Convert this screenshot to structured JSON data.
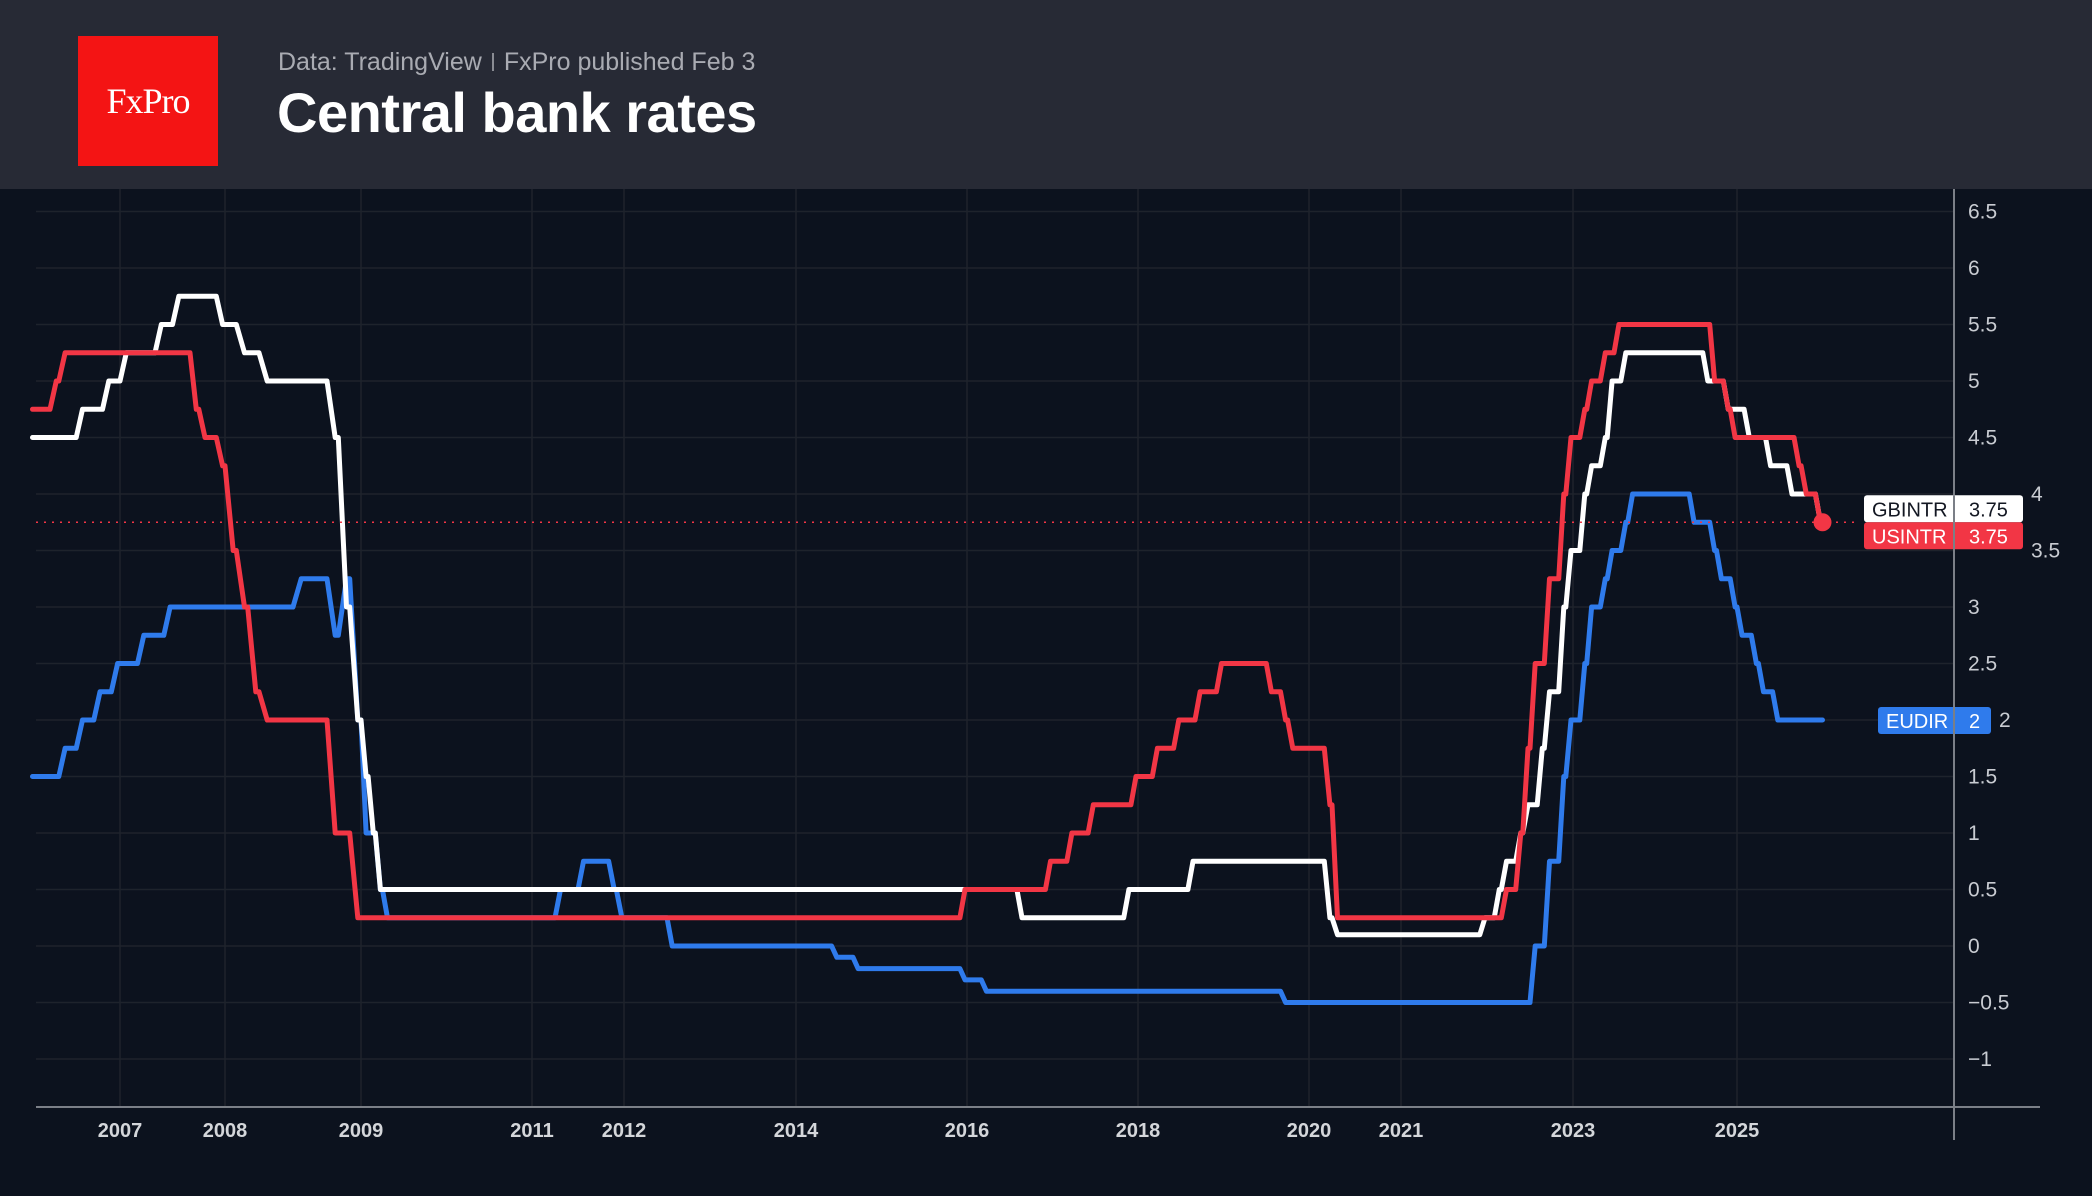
{
  "header": {
    "logo_text": "FxPro",
    "source": "Data: TradingView",
    "published": "FxPro published Feb 3",
    "title": "Central bank rates"
  },
  "chart_data": {
    "type": "line",
    "title": "Central bank rates",
    "xlabel": "",
    "ylabel": "",
    "x_ticks": [
      "2007",
      "2008",
      "2009",
      "2011",
      "2012",
      "2014",
      "2016",
      "2018",
      "2020",
      "2021",
      "2023",
      "2025"
    ],
    "y_ticks": [
      "6.5",
      "6",
      "5.5",
      "5",
      "4.5",
      "4",
      "3.5",
      "3",
      "2.5",
      "2",
      "1.5",
      "1",
      "0.5",
      "0",
      "−0.5",
      "−1"
    ],
    "y_tick_values": [
      6.5,
      6,
      5.5,
      5,
      4.5,
      4,
      3.5,
      3,
      2.5,
      2,
      1.5,
      1,
      0.5,
      0,
      -0.5,
      -1
    ],
    "ylim": [
      -1.4,
      6.7
    ],
    "grid": true,
    "background": "#0c121e",
    "series": [
      {
        "name": "GBINTR",
        "last_value": "3.75",
        "color": "#ffffff",
        "label_text_color": "#131722",
        "end": "2026-01",
        "steps": [
          [
            "2006-03",
            4.5
          ],
          [
            "2006-08",
            4.75
          ],
          [
            "2006-11",
            5.0
          ],
          [
            "2007-01",
            5.25
          ],
          [
            "2007-05",
            5.5
          ],
          [
            "2007-07",
            5.75
          ],
          [
            "2007-12",
            5.5
          ],
          [
            "2008-02",
            5.25
          ],
          [
            "2008-04",
            5.0
          ],
          [
            "2008-10",
            4.5
          ],
          [
            "2008-11",
            3.0
          ],
          [
            "2008-12",
            2.0
          ],
          [
            "2009-01",
            1.5
          ],
          [
            "2009-02",
            1.0
          ],
          [
            "2009-03",
            0.5
          ],
          [
            "2016-08",
            0.25
          ],
          [
            "2017-11",
            0.5
          ],
          [
            "2018-08",
            0.75
          ],
          [
            "2020-03",
            0.25
          ],
          [
            "2020-04",
            0.1
          ],
          [
            "2021-12",
            0.25
          ],
          [
            "2022-02",
            0.5
          ],
          [
            "2022-03",
            0.75
          ],
          [
            "2022-05",
            1.0
          ],
          [
            "2022-06",
            1.25
          ],
          [
            "2022-08",
            1.75
          ],
          [
            "2022-09",
            2.25
          ],
          [
            "2022-11",
            3.0
          ],
          [
            "2022-12",
            3.5
          ],
          [
            "2023-02",
            4.0
          ],
          [
            "2023-03",
            4.25
          ],
          [
            "2023-05",
            4.5
          ],
          [
            "2023-06",
            5.0
          ],
          [
            "2023-08",
            5.25
          ],
          [
            "2024-08",
            5.0
          ],
          [
            "2024-11",
            4.75
          ],
          [
            "2025-02",
            4.5
          ],
          [
            "2025-05",
            4.25
          ],
          [
            "2025-08",
            4.0
          ],
          [
            "2025-12",
            3.75
          ]
        ]
      },
      {
        "name": "USINTR",
        "last_value": "3.75",
        "color": "#f23645",
        "label_text_color": "#ffffff",
        "end": "2026-01",
        "marker": true,
        "price_line": true,
        "steps": [
          [
            "2006-03",
            4.75
          ],
          [
            "2006-05",
            5.0
          ],
          [
            "2006-06",
            5.25
          ],
          [
            "2007-09",
            4.75
          ],
          [
            "2007-10",
            4.5
          ],
          [
            "2007-12",
            4.25
          ],
          [
            "2008-01",
            3.5
          ],
          [
            "2008-02",
            3.0
          ],
          [
            "2008-03",
            2.25
          ],
          [
            "2008-04",
            2.0
          ],
          [
            "2008-10",
            1.0
          ],
          [
            "2008-12",
            0.25
          ],
          [
            "2015-12",
            0.5
          ],
          [
            "2016-12",
            0.75
          ],
          [
            "2017-03",
            1.0
          ],
          [
            "2017-06",
            1.25
          ],
          [
            "2017-12",
            1.5
          ],
          [
            "2018-03",
            1.75
          ],
          [
            "2018-06",
            2.0
          ],
          [
            "2018-09",
            2.25
          ],
          [
            "2018-12",
            2.5
          ],
          [
            "2019-07",
            2.25
          ],
          [
            "2019-09",
            2.0
          ],
          [
            "2019-10",
            1.75
          ],
          [
            "2020-03",
            1.25
          ],
          [
            "2020-04",
            0.25
          ],
          [
            "2022-03",
            0.5
          ],
          [
            "2022-05",
            1.0
          ],
          [
            "2022-06",
            1.75
          ],
          [
            "2022-07",
            2.5
          ],
          [
            "2022-09",
            3.25
          ],
          [
            "2022-11",
            4.0
          ],
          [
            "2022-12",
            4.5
          ],
          [
            "2023-02",
            4.75
          ],
          [
            "2023-03",
            5.0
          ],
          [
            "2023-05",
            5.25
          ],
          [
            "2023-07",
            5.5
          ],
          [
            "2024-09",
            5.0
          ],
          [
            "2024-11",
            4.75
          ],
          [
            "2024-12",
            4.5
          ],
          [
            "2025-09",
            4.25
          ],
          [
            "2025-10",
            4.0
          ],
          [
            "2025-12",
            3.75
          ]
        ]
      },
      {
        "name": "EUDIR",
        "last_value": "2",
        "color": "#2f7bec",
        "label_text_color": "#ffffff",
        "end": "2026-01",
        "steps": [
          [
            "2006-03",
            1.5
          ],
          [
            "2006-06",
            1.75
          ],
          [
            "2006-08",
            2.0
          ],
          [
            "2006-10",
            2.25
          ],
          [
            "2006-12",
            2.5
          ],
          [
            "2007-03",
            2.75
          ],
          [
            "2007-06",
            3.0
          ],
          [
            "2008-07",
            3.25
          ],
          [
            "2008-10",
            2.75
          ],
          [
            "2008-11",
            3.25
          ],
          [
            "2008-12",
            2.0
          ],
          [
            "2009-01",
            1.0
          ],
          [
            "2009-03",
            0.5
          ],
          [
            "2009-04",
            0.25
          ],
          [
            "2011-04",
            0.5
          ],
          [
            "2011-07",
            0.75
          ],
          [
            "2011-11",
            0.5
          ],
          [
            "2011-12",
            0.25
          ],
          [
            "2012-07",
            0.0
          ],
          [
            "2014-06",
            -0.1
          ],
          [
            "2014-09",
            -0.2
          ],
          [
            "2015-12",
            -0.3
          ],
          [
            "2016-03",
            -0.4
          ],
          [
            "2019-09",
            -0.5
          ],
          [
            "2022-07",
            0.0
          ],
          [
            "2022-09",
            0.75
          ],
          [
            "2022-11",
            1.5
          ],
          [
            "2022-12",
            2.0
          ],
          [
            "2023-02",
            2.5
          ],
          [
            "2023-03",
            3.0
          ],
          [
            "2023-05",
            3.25
          ],
          [
            "2023-06",
            3.5
          ],
          [
            "2023-08",
            3.75
          ],
          [
            "2023-09",
            4.0
          ],
          [
            "2024-06",
            3.75
          ],
          [
            "2024-09",
            3.5
          ],
          [
            "2024-10",
            3.25
          ],
          [
            "2024-12",
            3.0
          ],
          [
            "2025-01",
            2.75
          ],
          [
            "2025-03",
            2.5
          ],
          [
            "2025-04",
            2.25
          ],
          [
            "2025-06",
            2.0
          ]
        ]
      }
    ]
  }
}
